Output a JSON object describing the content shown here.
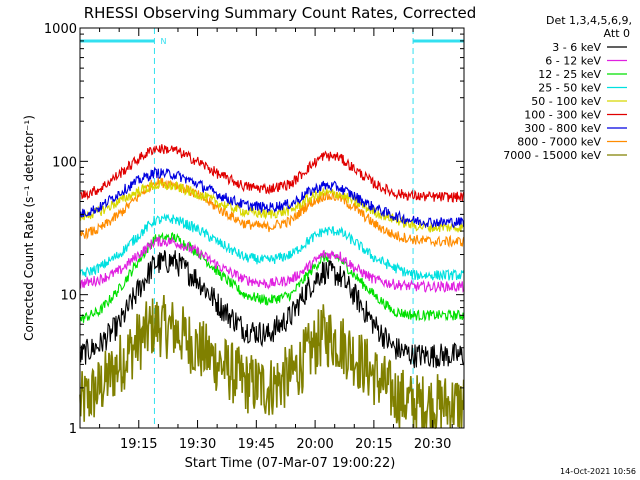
{
  "chart_data": {
    "type": "line",
    "title": "RHESSI Observing Summary Count Rates, Corrected",
    "xlabel": "Start Time (07-Mar-07 19:00:22)",
    "ylabel": "Corrected Count Rate (s⁻¹ detector⁻¹)",
    "yscale": "log",
    "ylim": [
      1,
      1000
    ],
    "xlim_minutes": [
      0,
      98
    ],
    "x_tick_labels": [
      "19:15",
      "19:30",
      "19:45",
      "20:00",
      "20:15",
      "20:30"
    ],
    "x_tick_minutes": [
      15,
      30,
      45,
      60,
      75,
      90
    ],
    "y_tick_labels": [
      "1",
      "10",
      "100",
      "1000"
    ],
    "y_tick_values": [
      1,
      10,
      100,
      1000
    ],
    "legend_header": [
      "Det 1,3,4,5,6,9,",
      "Att 0"
    ],
    "legend_position": "right",
    "night_marker_label": "N",
    "night_intervals_minutes": [
      [
        0,
        19
      ],
      [
        85,
        98
      ]
    ],
    "x_minutes": [
      0,
      5,
      10,
      15,
      19,
      24,
      30,
      36,
      42,
      48,
      54,
      58,
      62,
      66,
      70,
      75,
      80,
      85,
      90,
      95,
      98
    ],
    "series": [
      {
        "name": "3 - 6 keV",
        "color": "#000000",
        "values": [
          3.5,
          4.2,
          6,
          11,
          17,
          18,
          13,
          8,
          5.5,
          5,
          7,
          11,
          15,
          14,
          10,
          6,
          4,
          3.5,
          3.5,
          3.5,
          3.5
        ]
      },
      {
        "name": "6 - 12 keV",
        "color": "#e020e0",
        "values": [
          12,
          13,
          15,
          20,
          25,
          25,
          21,
          16,
          13,
          12,
          13,
          16,
          20,
          20,
          16,
          13,
          12,
          11.5,
          11.5,
          11.5,
          11.5
        ]
      },
      {
        "name": "12 - 25 keV",
        "color": "#00e000",
        "values": [
          6.5,
          7.5,
          11,
          18,
          26,
          27,
          21,
          14,
          10,
          9,
          10,
          14,
          19,
          19,
          14,
          10,
          7.5,
          7,
          7,
          7,
          7
        ]
      },
      {
        "name": "25 - 50 keV",
        "color": "#00e0e0",
        "values": [
          14,
          16,
          20,
          28,
          36,
          37,
          31,
          24,
          19,
          18,
          20,
          25,
          30,
          30,
          25,
          19,
          16,
          14,
          14,
          14,
          14
        ]
      },
      {
        "name": "50 - 100 keV",
        "color": "#d8d800",
        "values": [
          38,
          42,
          50,
          60,
          66,
          65,
          57,
          48,
          42,
          40,
          43,
          52,
          58,
          57,
          50,
          42,
          37,
          33,
          32,
          32,
          32
        ]
      },
      {
        "name": "100 - 300 keV",
        "color": "#e00000",
        "values": [
          55,
          62,
          80,
          105,
          125,
          122,
          100,
          78,
          65,
          62,
          68,
          88,
          110,
          108,
          88,
          68,
          58,
          55,
          54,
          54,
          54
        ]
      },
      {
        "name": "300 - 800 keV",
        "color": "#0000e0",
        "values": [
          40,
          45,
          58,
          72,
          82,
          80,
          68,
          55,
          47,
          45,
          48,
          58,
          66,
          64,
          55,
          45,
          39,
          36,
          35,
          35,
          35
        ]
      },
      {
        "name": "800 - 7000 keV",
        "color": "#ff8c00",
        "values": [
          28,
          31,
          40,
          55,
          70,
          68,
          56,
          43,
          34,
          32,
          36,
          47,
          55,
          54,
          45,
          34,
          28,
          26,
          25,
          25,
          25
        ]
      },
      {
        "name": "7000 - 15000 keV",
        "color": "#808000",
        "values": [
          1.5,
          2,
          3,
          4.5,
          6,
          5.5,
          4,
          3,
          2.2,
          2,
          2.5,
          3.5,
          5,
          4.5,
          3.5,
          2.5,
          1.8,
          1.5,
          1.5,
          1.5,
          1.5
        ]
      }
    ]
  },
  "footer": {
    "timestamp": "14-Oct-2021 10:56"
  }
}
